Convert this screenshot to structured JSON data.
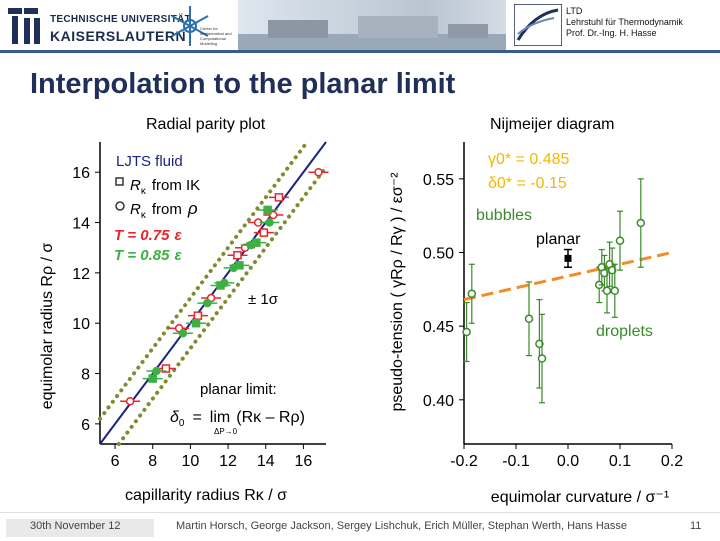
{
  "header": {
    "university_line1": "TECHNISCHE UNIVERSITÄT",
    "university_line2": "KAISERSLAUTERN",
    "institute_small": "Center for Mathematical and Computational Modelling",
    "ltd_line1": "LTD",
    "ltd_line2": "Lehrstuhl für Thermodynamik",
    "ltd_line3": "Prof. Dr.-Ing. H. Hasse"
  },
  "slide": {
    "title": "Interpolation to the planar limit",
    "left_subtitle": "Radial parity plot",
    "right_subtitle": "Nijmeijer diagram"
  },
  "footer": {
    "date": "30th November 12",
    "authors": "Martin Horsch, George Jackson, Sergey Lishchuk, Erich Müller, Stephan Werth, Hans Hasse",
    "page": "11"
  },
  "colors": {
    "title": "#1f2f57",
    "ljts_line": "#1a237e",
    "bound_dots": "#7d8c2e",
    "t075": "#e8252b",
    "t085": "#3cb043",
    "nijmeijer_points": "#3a8a2a",
    "fit_line": "#f28c28",
    "gamma_text": "#f5b800"
  },
  "chart_data": [
    {
      "type": "scatter",
      "title": "Radial parity plot",
      "xlabel": "capillarity radius Rκ / σ",
      "ylabel": "equimolar radius Rρ / σ",
      "xlim": [
        5.2,
        17.2
      ],
      "ylim": [
        5.2,
        17.2
      ],
      "x_ticks": [
        6,
        8,
        10,
        12,
        14,
        16
      ],
      "y_ticks": [
        6,
        8,
        10,
        12,
        14,
        16
      ],
      "grid": false,
      "annotations": {
        "legend_title": "LJTS fluid",
        "from_ik_a": "R",
        "from_ik_b": "from IK",
        "from_rho_a": "R",
        "from_rho_b": "from",
        "from_rho_c": "ρ",
        "sub_kappa": "κ",
        "t075_a": "T = 0.75",
        "t075_b": "ε",
        "t085_a": "T = 0.85",
        "t085_b": "ε",
        "bounds": "± 1σ",
        "planar_limit": "planar limit:",
        "delta0_sym": "δ",
        "delta0_sub": "0",
        "eq_sign": "=",
        "lim_sym": "lim",
        "lim_under": "ΔP→0",
        "lim_body": "(Rκ – Rρ)"
      },
      "series": [
        {
          "name": "T = 0.75 ε",
          "marker": "circle-open",
          "x": [
            6.8,
            9.4,
            11.1,
            12.9,
            13.6,
            14.4,
            16.8
          ],
          "y": [
            6.9,
            9.8,
            11.0,
            13.0,
            14.0,
            14.3,
            16.0
          ]
        },
        {
          "name": "T = 0.75 ε (IK)",
          "marker": "square-open",
          "x": [
            8.7,
            10.4,
            12.5,
            13.9,
            14.7
          ],
          "y": [
            8.2,
            10.3,
            12.7,
            13.6,
            15.0
          ]
        },
        {
          "name": "T = 0.85 ε",
          "marker": "circle-filled",
          "x": [
            8.2,
            9.6,
            10.9,
            11.8,
            12.3,
            13.2,
            14.2
          ],
          "y": [
            8.1,
            9.6,
            10.8,
            11.6,
            12.2,
            13.1,
            14.0
          ]
        },
        {
          "name": "T = 0.85 ε (IK)",
          "marker": "square-filled",
          "x": [
            8.0,
            10.3,
            11.6,
            12.6,
            13.5,
            14.1
          ],
          "y": [
            7.8,
            10.0,
            11.5,
            12.3,
            13.2,
            14.5
          ]
        }
      ]
    },
    {
      "type": "scatter",
      "title": "Nijmeijer diagram",
      "xlabel": "equimolar curvature / σ⁻¹",
      "ylabel": "pseudo-tension ( γRρ / Rγ ) / εσ⁻²",
      "xlim": [
        -0.2,
        0.2
      ],
      "ylim": [
        0.37,
        0.575
      ],
      "x_ticks": [
        -0.2,
        -0.1,
        0.0,
        0.1,
        0.2
      ],
      "x_tick_labels": [
        "-0.2",
        "-0.1",
        "0.0",
        "0.1",
        "0.2"
      ],
      "y_ticks": [
        0.4,
        0.45,
        0.5,
        0.55
      ],
      "y_tick_labels": [
        "0.40",
        "0.45",
        "0.50",
        "0.55"
      ],
      "grid": false,
      "annotations": {
        "gamma0": "γ0* = 0.485",
        "delta0": "δ0* = -0.15",
        "bubbles": "bubbles",
        "planar": "planar",
        "droplets": "droplets"
      },
      "fit_line": {
        "x": [
          -0.2,
          0.2
        ],
        "y": [
          0.468,
          0.5
        ]
      },
      "planar_point": {
        "x": 0.0,
        "y": 0.496,
        "err": 0.006
      },
      "series": [
        {
          "name": "bubbles",
          "x": [
            -0.195,
            -0.185,
            -0.075,
            -0.055,
            -0.05
          ],
          "y": [
            0.446,
            0.472,
            0.455,
            0.438,
            0.428
          ],
          "err": [
            0.02,
            0.02,
            0.025,
            0.03,
            0.03
          ]
        },
        {
          "name": "droplets",
          "x": [
            0.06,
            0.065,
            0.07,
            0.075,
            0.08,
            0.085,
            0.09,
            0.1,
            0.14
          ],
          "y": [
            0.478,
            0.49,
            0.486,
            0.474,
            0.492,
            0.488,
            0.474,
            0.508,
            0.52
          ],
          "err": [
            0.012,
            0.012,
            0.012,
            0.015,
            0.015,
            0.015,
            0.018,
            0.02,
            0.03
          ]
        }
      ]
    }
  ]
}
